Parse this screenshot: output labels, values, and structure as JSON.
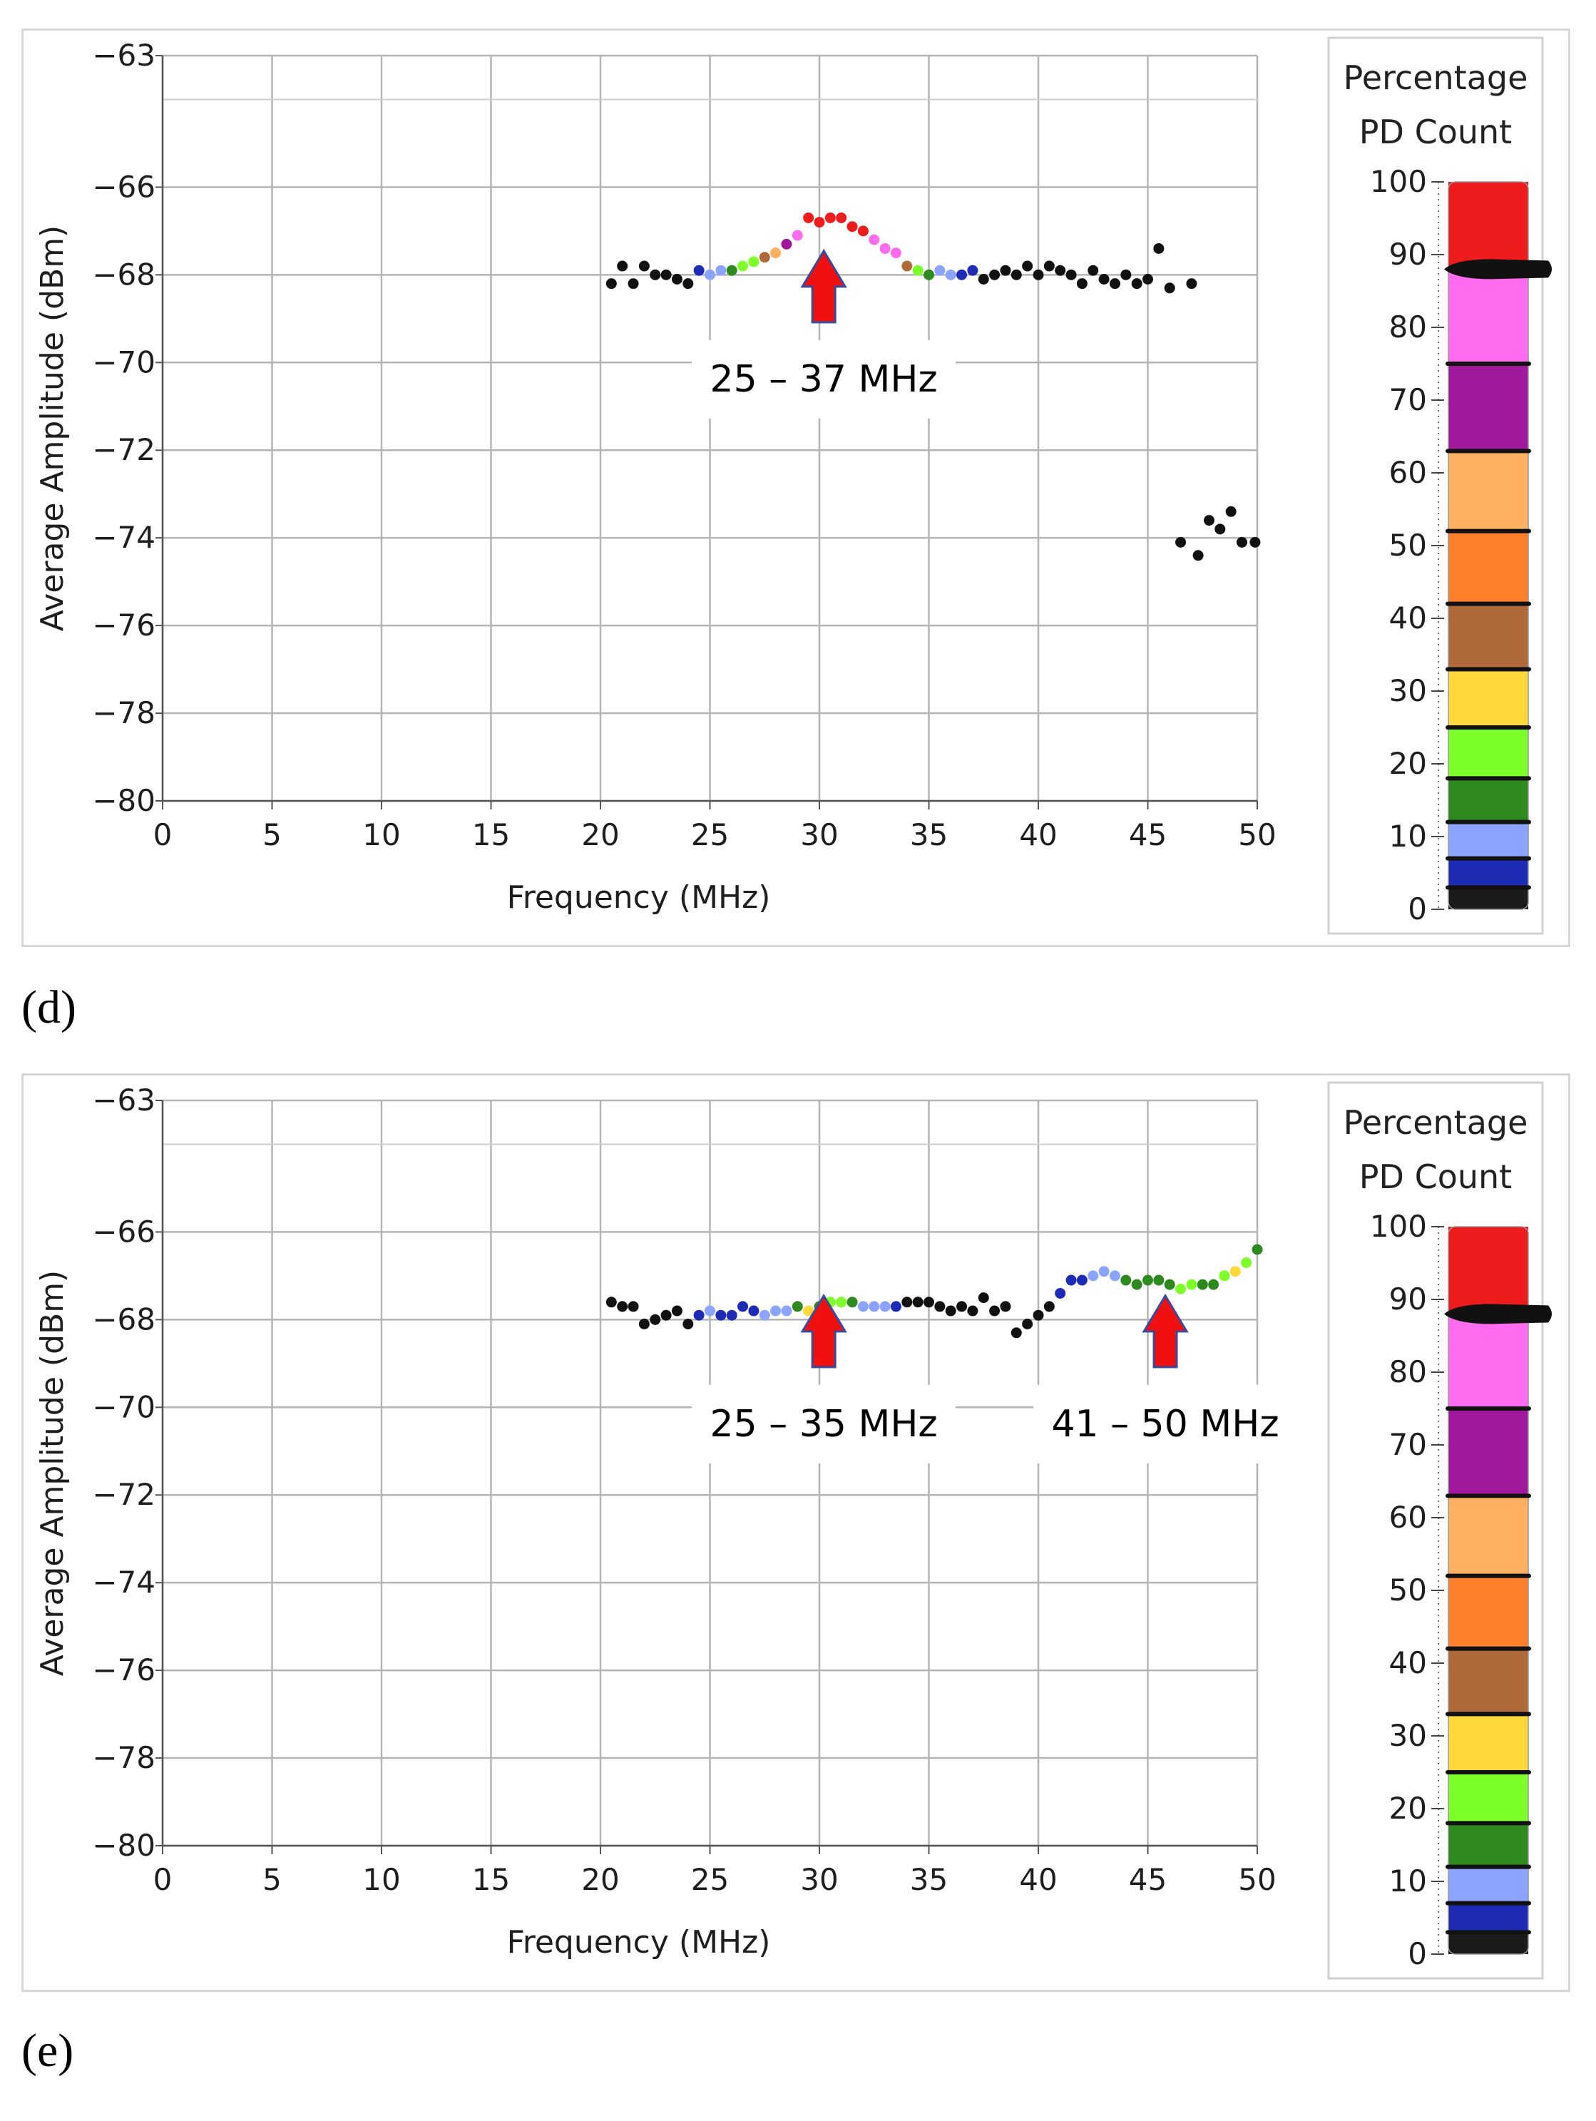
{
  "panels": [
    {
      "label": "(d)",
      "legend": {
        "title_line1": "Percentage",
        "title_line2": "PD Count"
      }
    },
    {
      "label": "(e)",
      "legend": {
        "title_line1": "Percentage",
        "title_line2": "PD Count"
      }
    }
  ],
  "colorscale": {
    "ticks": [
      0,
      10,
      20,
      30,
      40,
      50,
      60,
      70,
      80,
      90,
      100
    ],
    "bands": [
      {
        "from": 0,
        "to": 3,
        "color": "#1a1a1a"
      },
      {
        "from": 3,
        "to": 7,
        "color": "#1e2bb5"
      },
      {
        "from": 7,
        "to": 12,
        "color": "#8ba4ff"
      },
      {
        "from": 12,
        "to": 18,
        "color": "#2e8a1e"
      },
      {
        "from": 18,
        "to": 25,
        "color": "#7dff2a"
      },
      {
        "from": 25,
        "to": 33,
        "color": "#ffd93a"
      },
      {
        "from": 33,
        "to": 42,
        "color": "#b06a3a"
      },
      {
        "from": 42,
        "to": 52,
        "color": "#ff7f2a"
      },
      {
        "from": 52,
        "to": 63,
        "color": "#ffb060"
      },
      {
        "from": 63,
        "to": 75,
        "color": "#a0189c"
      },
      {
        "from": 75,
        "to": 88,
        "color": "#ff6cf0"
      },
      {
        "from": 88,
        "to": 100,
        "color": "#ee1c1c"
      }
    ],
    "slider_value": 88
  },
  "chart_data": [
    {
      "type": "scatter",
      "title": "",
      "xlabel": "Frequency (MHz)",
      "ylabel": "Average Amplitude (dBm)",
      "xlim": [
        0,
        50
      ],
      "ylim": [
        -80,
        -63
      ],
      "xticks": [
        0,
        5,
        10,
        15,
        20,
        25,
        30,
        35,
        40,
        45,
        50
      ],
      "yticks": [
        -80,
        -78,
        -76,
        -74,
        -72,
        -70,
        -68,
        -66,
        -63
      ],
      "annotations": [
        {
          "text": "25 – 37 MHz",
          "x": 30.2,
          "y": -69
        }
      ],
      "points": [
        {
          "x": 20.5,
          "y": -68.2,
          "c": "#111111"
        },
        {
          "x": 21.0,
          "y": -67.8,
          "c": "#111111"
        },
        {
          "x": 21.5,
          "y": -68.2,
          "c": "#111111"
        },
        {
          "x": 22.0,
          "y": -67.8,
          "c": "#111111"
        },
        {
          "x": 22.5,
          "y": -68.0,
          "c": "#111111"
        },
        {
          "x": 23.0,
          "y": -68.0,
          "c": "#111111"
        },
        {
          "x": 23.5,
          "y": -68.1,
          "c": "#111111"
        },
        {
          "x": 24.0,
          "y": -68.2,
          "c": "#111111"
        },
        {
          "x": 24.5,
          "y": -67.9,
          "c": "#1e2bb5"
        },
        {
          "x": 25.0,
          "y": -68.0,
          "c": "#8ba4ff"
        },
        {
          "x": 25.5,
          "y": -67.9,
          "c": "#8ba4ff"
        },
        {
          "x": 26.0,
          "y": -67.9,
          "c": "#2e8a1e"
        },
        {
          "x": 26.5,
          "y": -67.8,
          "c": "#7dff2a"
        },
        {
          "x": 27.0,
          "y": -67.7,
          "c": "#7dff2a"
        },
        {
          "x": 27.5,
          "y": -67.6,
          "c": "#b06a3a"
        },
        {
          "x": 28.0,
          "y": -67.5,
          "c": "#ffb060"
        },
        {
          "x": 28.5,
          "y": -67.3,
          "c": "#a0189c"
        },
        {
          "x": 29.0,
          "y": -67.1,
          "c": "#ff6cf0"
        },
        {
          "x": 29.5,
          "y": -66.7,
          "c": "#ee1c1c"
        },
        {
          "x": 30.0,
          "y": -66.8,
          "c": "#ee1c1c"
        },
        {
          "x": 30.5,
          "y": -66.7,
          "c": "#ee1c1c"
        },
        {
          "x": 31.0,
          "y": -66.7,
          "c": "#ee1c1c"
        },
        {
          "x": 31.5,
          "y": -66.9,
          "c": "#ee1c1c"
        },
        {
          "x": 32.0,
          "y": -67.0,
          "c": "#ee1c1c"
        },
        {
          "x": 32.5,
          "y": -67.2,
          "c": "#ff6cf0"
        },
        {
          "x": 33.0,
          "y": -67.4,
          "c": "#ff6cf0"
        },
        {
          "x": 33.5,
          "y": -67.5,
          "c": "#ff6cf0"
        },
        {
          "x": 34.0,
          "y": -67.8,
          "c": "#b06a3a"
        },
        {
          "x": 34.5,
          "y": -67.9,
          "c": "#7dff2a"
        },
        {
          "x": 35.0,
          "y": -68.0,
          "c": "#2e8a1e"
        },
        {
          "x": 35.5,
          "y": -67.9,
          "c": "#8ba4ff"
        },
        {
          "x": 36.0,
          "y": -68.0,
          "c": "#8ba4ff"
        },
        {
          "x": 36.5,
          "y": -68.0,
          "c": "#1e2bb5"
        },
        {
          "x": 37.0,
          "y": -67.9,
          "c": "#1e2bb5"
        },
        {
          "x": 37.5,
          "y": -68.1,
          "c": "#111111"
        },
        {
          "x": 38.0,
          "y": -68.0,
          "c": "#111111"
        },
        {
          "x": 38.5,
          "y": -67.9,
          "c": "#111111"
        },
        {
          "x": 39.0,
          "y": -68.0,
          "c": "#111111"
        },
        {
          "x": 39.5,
          "y": -67.8,
          "c": "#111111"
        },
        {
          "x": 40.0,
          "y": -68.0,
          "c": "#111111"
        },
        {
          "x": 40.5,
          "y": -67.8,
          "c": "#111111"
        },
        {
          "x": 41.0,
          "y": -67.9,
          "c": "#111111"
        },
        {
          "x": 41.5,
          "y": -68.0,
          "c": "#111111"
        },
        {
          "x": 42.0,
          "y": -68.2,
          "c": "#111111"
        },
        {
          "x": 42.5,
          "y": -67.9,
          "c": "#111111"
        },
        {
          "x": 43.0,
          "y": -68.1,
          "c": "#111111"
        },
        {
          "x": 43.5,
          "y": -68.2,
          "c": "#111111"
        },
        {
          "x": 44.0,
          "y": -68.0,
          "c": "#111111"
        },
        {
          "x": 44.5,
          "y": -68.2,
          "c": "#111111"
        },
        {
          "x": 45.0,
          "y": -68.1,
          "c": "#111111"
        },
        {
          "x": 45.5,
          "y": -67.4,
          "c": "#111111"
        },
        {
          "x": 46.0,
          "y": -68.3,
          "c": "#111111"
        },
        {
          "x": 47.0,
          "y": -68.2,
          "c": "#111111"
        },
        {
          "x": 46.5,
          "y": -74.1,
          "c": "#111111"
        },
        {
          "x": 47.3,
          "y": -74.4,
          "c": "#111111"
        },
        {
          "x": 47.8,
          "y": -73.6,
          "c": "#111111"
        },
        {
          "x": 48.3,
          "y": -73.8,
          "c": "#111111"
        },
        {
          "x": 48.8,
          "y": -73.4,
          "c": "#111111"
        },
        {
          "x": 49.3,
          "y": -74.1,
          "c": "#111111"
        },
        {
          "x": 49.9,
          "y": -74.1,
          "c": "#111111"
        }
      ]
    },
    {
      "type": "scatter",
      "title": "",
      "xlabel": "Frequency (MHz)",
      "ylabel": "Average Amplitude (dBm)",
      "xlim": [
        0,
        50
      ],
      "ylim": [
        -80,
        -63
      ],
      "xticks": [
        0,
        5,
        10,
        15,
        20,
        25,
        30,
        35,
        40,
        45,
        50
      ],
      "yticks": [
        -80,
        -78,
        -76,
        -74,
        -72,
        -70,
        -68,
        -66,
        -63
      ],
      "annotations": [
        {
          "text": "25 – 35 MHz",
          "x": 30.2,
          "y": -69
        },
        {
          "text": "41 – 50 MHz",
          "x": 45.8,
          "y": -69
        }
      ],
      "points": [
        {
          "x": 20.5,
          "y": -67.6,
          "c": "#111111"
        },
        {
          "x": 21.0,
          "y": -67.7,
          "c": "#111111"
        },
        {
          "x": 21.5,
          "y": -67.7,
          "c": "#111111"
        },
        {
          "x": 22.0,
          "y": -68.1,
          "c": "#111111"
        },
        {
          "x": 22.5,
          "y": -68.0,
          "c": "#111111"
        },
        {
          "x": 23.0,
          "y": -67.9,
          "c": "#111111"
        },
        {
          "x": 23.5,
          "y": -67.8,
          "c": "#111111"
        },
        {
          "x": 24.0,
          "y": -68.1,
          "c": "#111111"
        },
        {
          "x": 24.5,
          "y": -67.9,
          "c": "#1e2bb5"
        },
        {
          "x": 25.0,
          "y": -67.8,
          "c": "#8ba4ff"
        },
        {
          "x": 25.5,
          "y": -67.9,
          "c": "#1e2bb5"
        },
        {
          "x": 26.0,
          "y": -67.9,
          "c": "#1e2bb5"
        },
        {
          "x": 26.5,
          "y": -67.7,
          "c": "#1e2bb5"
        },
        {
          "x": 27.0,
          "y": -67.8,
          "c": "#1e2bb5"
        },
        {
          "x": 27.5,
          "y": -67.9,
          "c": "#8ba4ff"
        },
        {
          "x": 28.0,
          "y": -67.8,
          "c": "#8ba4ff"
        },
        {
          "x": 28.5,
          "y": -67.8,
          "c": "#8ba4ff"
        },
        {
          "x": 29.0,
          "y": -67.7,
          "c": "#2e8a1e"
        },
        {
          "x": 29.5,
          "y": -67.8,
          "c": "#ffd93a"
        },
        {
          "x": 30.0,
          "y": -67.7,
          "c": "#2e8a1e"
        },
        {
          "x": 30.5,
          "y": -67.6,
          "c": "#7dff2a"
        },
        {
          "x": 31.0,
          "y": -67.6,
          "c": "#7dff2a"
        },
        {
          "x": 31.5,
          "y": -67.6,
          "c": "#2e8a1e"
        },
        {
          "x": 32.0,
          "y": -67.7,
          "c": "#8ba4ff"
        },
        {
          "x": 32.5,
          "y": -67.7,
          "c": "#8ba4ff"
        },
        {
          "x": 33.0,
          "y": -67.7,
          "c": "#8ba4ff"
        },
        {
          "x": 33.5,
          "y": -67.7,
          "c": "#1e2bb5"
        },
        {
          "x": 34.0,
          "y": -67.6,
          "c": "#111111"
        },
        {
          "x": 34.5,
          "y": -67.6,
          "c": "#111111"
        },
        {
          "x": 35.0,
          "y": -67.6,
          "c": "#111111"
        },
        {
          "x": 35.5,
          "y": -67.7,
          "c": "#111111"
        },
        {
          "x": 36.0,
          "y": -67.8,
          "c": "#111111"
        },
        {
          "x": 36.5,
          "y": -67.7,
          "c": "#111111"
        },
        {
          "x": 37.0,
          "y": -67.8,
          "c": "#111111"
        },
        {
          "x": 37.5,
          "y": -67.5,
          "c": "#111111"
        },
        {
          "x": 38.0,
          "y": -67.8,
          "c": "#111111"
        },
        {
          "x": 38.5,
          "y": -67.7,
          "c": "#111111"
        },
        {
          "x": 39.0,
          "y": -68.3,
          "c": "#111111"
        },
        {
          "x": 39.5,
          "y": -68.1,
          "c": "#111111"
        },
        {
          "x": 40.0,
          "y": -67.9,
          "c": "#111111"
        },
        {
          "x": 40.5,
          "y": -67.7,
          "c": "#111111"
        },
        {
          "x": 41.0,
          "y": -67.4,
          "c": "#1e2bb5"
        },
        {
          "x": 41.5,
          "y": -67.1,
          "c": "#1e2bb5"
        },
        {
          "x": 42.0,
          "y": -67.1,
          "c": "#1e2bb5"
        },
        {
          "x": 42.5,
          "y": -67.0,
          "c": "#8ba4ff"
        },
        {
          "x": 43.0,
          "y": -66.9,
          "c": "#8ba4ff"
        },
        {
          "x": 43.5,
          "y": -67.0,
          "c": "#8ba4ff"
        },
        {
          "x": 44.0,
          "y": -67.1,
          "c": "#2e8a1e"
        },
        {
          "x": 44.5,
          "y": -67.2,
          "c": "#2e8a1e"
        },
        {
          "x": 45.0,
          "y": -67.1,
          "c": "#2e8a1e"
        },
        {
          "x": 45.5,
          "y": -67.1,
          "c": "#2e8a1e"
        },
        {
          "x": 46.0,
          "y": -67.2,
          "c": "#2e8a1e"
        },
        {
          "x": 46.5,
          "y": -67.3,
          "c": "#7dff2a"
        },
        {
          "x": 47.0,
          "y": -67.2,
          "c": "#7dff2a"
        },
        {
          "x": 47.5,
          "y": -67.2,
          "c": "#2e8a1e"
        },
        {
          "x": 48.0,
          "y": -67.2,
          "c": "#2e8a1e"
        },
        {
          "x": 48.5,
          "y": -67.0,
          "c": "#7dff2a"
        },
        {
          "x": 49.0,
          "y": -66.9,
          "c": "#ffd93a"
        },
        {
          "x": 49.5,
          "y": -66.7,
          "c": "#7dff2a"
        },
        {
          "x": 50.0,
          "y": -66.4,
          "c": "#2e8a1e"
        }
      ]
    }
  ]
}
